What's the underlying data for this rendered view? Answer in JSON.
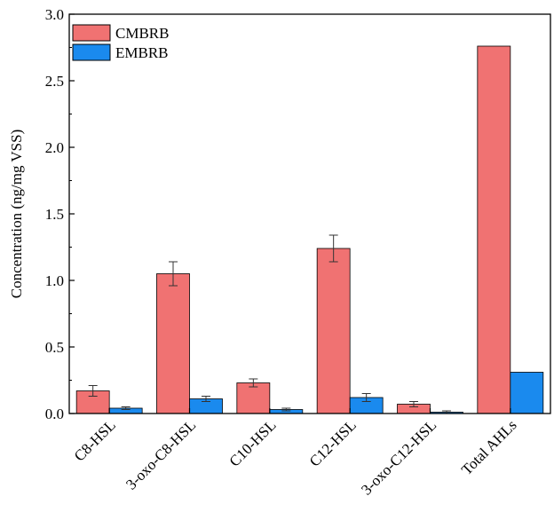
{
  "chart_data": {
    "type": "bar",
    "categories": [
      "C8-HSL",
      "3-oxo-C8-HSL",
      "C10-HSL",
      "C12-HSL",
      "3-oxo-C12-HSL",
      "Total AHLs"
    ],
    "series": [
      {
        "name": "CMBRB",
        "values": [
          0.17,
          1.05,
          0.23,
          1.24,
          0.07,
          2.76
        ],
        "errors": [
          0.04,
          0.09,
          0.03,
          0.1,
          0.02,
          null
        ],
        "color": "#F07272"
      },
      {
        "name": "EMBRB",
        "values": [
          0.04,
          0.11,
          0.03,
          0.12,
          0.01,
          0.31
        ],
        "errors": [
          0.01,
          0.02,
          0.01,
          0.03,
          0.01,
          null
        ],
        "color": "#1A8AEE"
      }
    ],
    "title": "",
    "xlabel": "",
    "ylabel": "Concentration (ng/mg VSS)",
    "ylim": [
      0,
      3.0
    ],
    "yticks": [
      "0.0",
      "0.5",
      "1.0",
      "1.5",
      "2.0",
      "2.5",
      "3.0"
    ],
    "grid": false,
    "legend_position": "top-left"
  }
}
